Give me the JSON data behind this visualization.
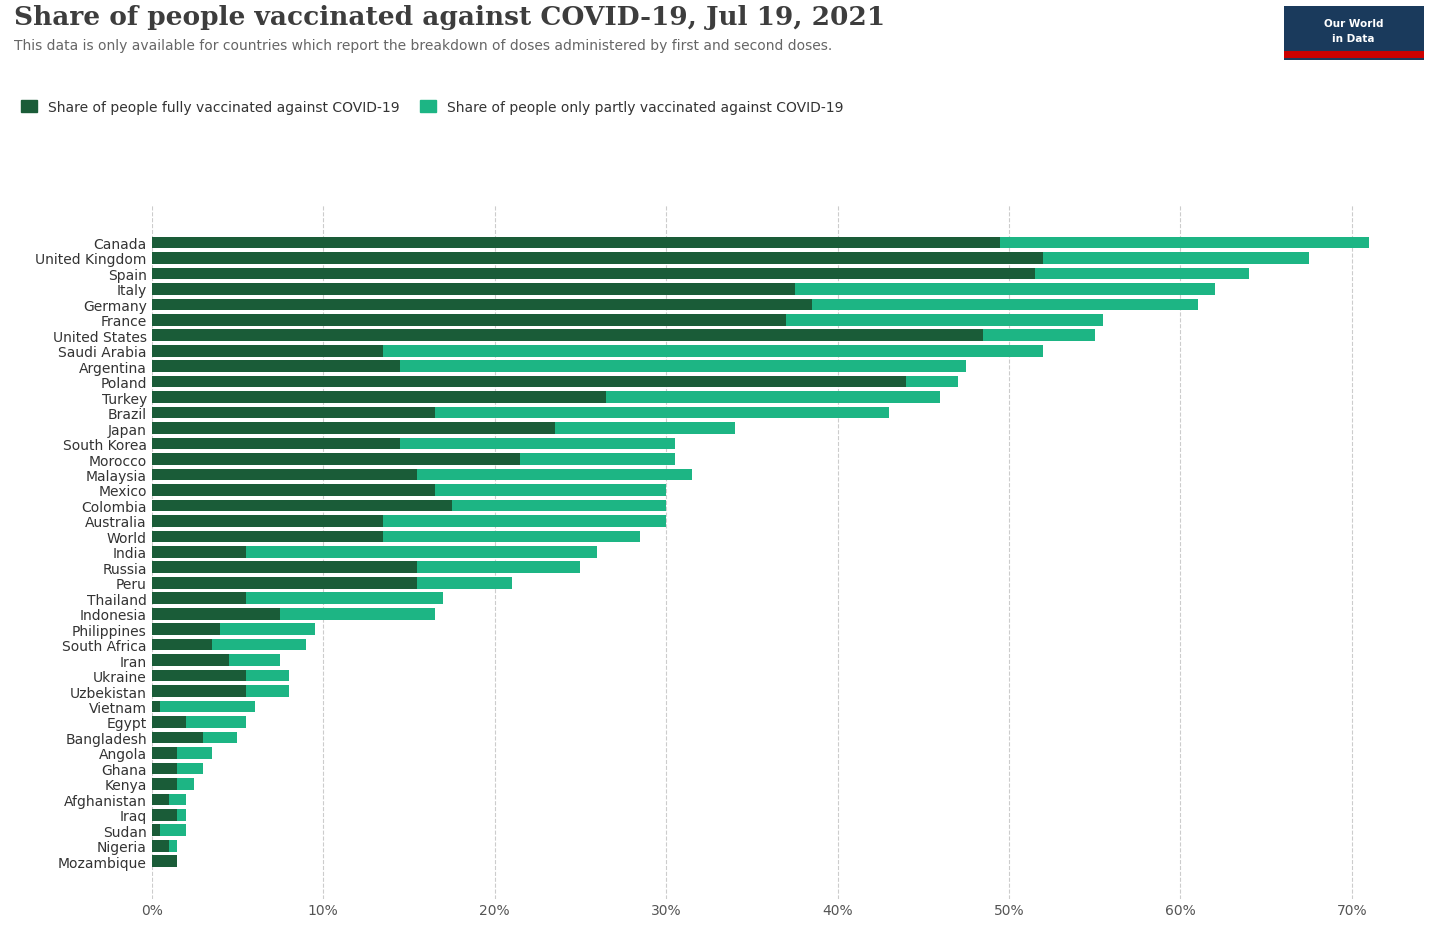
{
  "title": "Share of people vaccinated against COVID-19, Jul 19, 2021",
  "subtitle": "This data is only available for countries which report the breakdown of doses administered by first and second doses.",
  "legend_full": "Share of people fully vaccinated against COVID-19",
  "legend_partly": "Share of people only partly vaccinated against COVID-19",
  "color_full": "#1a5c38",
  "color_partly": "#1db584",
  "background_color": "#ffffff",
  "countries": [
    "Canada",
    "United Kingdom",
    "Spain",
    "Italy",
    "Germany",
    "France",
    "United States",
    "Saudi Arabia",
    "Argentina",
    "Poland",
    "Turkey",
    "Brazil",
    "Japan",
    "South Korea",
    "Morocco",
    "Malaysia",
    "Mexico",
    "Colombia",
    "Australia",
    "World",
    "India",
    "Russia",
    "Peru",
    "Thailand",
    "Indonesia",
    "Philippines",
    "South Africa",
    "Iran",
    "Ukraine",
    "Uzbekistan",
    "Vietnam",
    "Egypt",
    "Bangladesh",
    "Angola",
    "Ghana",
    "Kenya",
    "Afghanistan",
    "Iraq",
    "Sudan",
    "Nigeria",
    "Mozambique"
  ],
  "fully_vaccinated": [
    49.5,
    52.0,
    51.5,
    37.5,
    38.5,
    37.0,
    48.5,
    13.5,
    14.5,
    44.0,
    26.5,
    16.5,
    23.5,
    14.5,
    21.5,
    15.5,
    16.5,
    17.5,
    13.5,
    13.5,
    5.5,
    15.5,
    15.5,
    5.5,
    7.5,
    4.0,
    3.5,
    4.5,
    5.5,
    5.5,
    0.5,
    2.0,
    3.0,
    1.5,
    1.5,
    1.5,
    1.0,
    1.5,
    0.5,
    1.0,
    1.5
  ],
  "partly_vaccinated": [
    21.5,
    15.5,
    12.5,
    24.5,
    22.5,
    18.5,
    6.5,
    38.5,
    33.0,
    3.0,
    19.5,
    26.5,
    10.5,
    16.0,
    9.0,
    16.0,
    13.5,
    12.5,
    16.5,
    15.0,
    20.5,
    9.5,
    5.5,
    11.5,
    9.0,
    5.5,
    5.5,
    3.0,
    2.5,
    2.5,
    5.5,
    3.5,
    2.0,
    2.0,
    1.5,
    1.0,
    1.0,
    0.5,
    1.5,
    0.5,
    0.0
  ],
  "xlim": [
    0,
    72
  ],
  "xticks": [
    0,
    10,
    20,
    30,
    40,
    50,
    60,
    70
  ],
  "xticklabels": [
    "0%",
    "10%",
    "20%",
    "30%",
    "40%",
    "50%",
    "60%",
    "70%"
  ],
  "title_fontsize": 19,
  "subtitle_fontsize": 10,
  "label_fontsize": 10,
  "tick_fontsize": 10,
  "bar_height": 0.75
}
